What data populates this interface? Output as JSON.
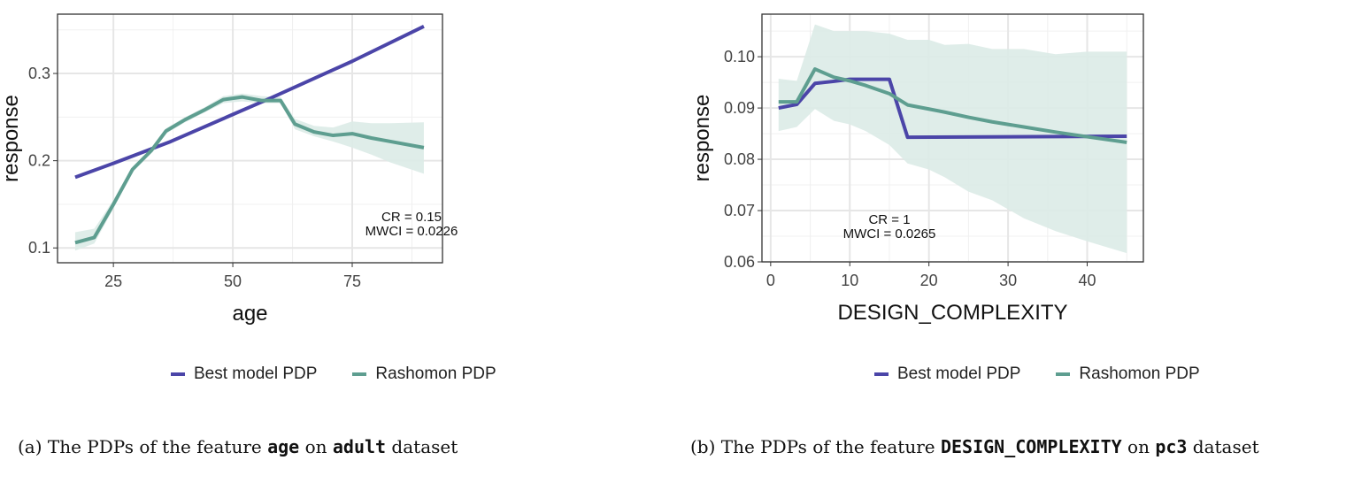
{
  "colors": {
    "best": "#4B45A8",
    "rashomon": "#5E9E90",
    "band": "#DCEBE7",
    "grid": "#E6E6E6"
  },
  "chart_data": [
    {
      "type": "line",
      "xlabel": "age",
      "ylabel": "response",
      "xlim": [
        13.3,
        93.9
      ],
      "ylim": [
        0.083,
        0.368
      ],
      "xticks": [
        25,
        50,
        75
      ],
      "xtick_labels": [
        "25",
        "50",
        "75"
      ],
      "yticks": [
        0.1,
        0.2,
        0.3
      ],
      "ytick_labels": [
        "0.1",
        "0.2",
        "0.3"
      ],
      "grid": true,
      "legend": "bottom",
      "annotation": [
        "CR = 0.15",
        "MWCI = 0.0226"
      ],
      "series": [
        {
          "name": "Best model PDP",
          "x": [
            17,
            25,
            37,
            50,
            58,
            75,
            90
          ],
          "y": [
            0.181,
            0.197,
            0.222,
            0.253,
            0.272,
            0.314,
            0.354
          ]
        },
        {
          "name": "Rashomon PDP",
          "x": [
            17,
            21,
            25,
            29,
            33,
            36,
            40,
            44,
            48,
            52,
            56,
            60,
            63,
            67,
            71,
            75,
            79,
            83,
            90
          ],
          "y": [
            0.106,
            0.112,
            0.15,
            0.19,
            0.212,
            0.234,
            0.247,
            0.258,
            0.27,
            0.273,
            0.269,
            0.269,
            0.242,
            0.233,
            0.229,
            0.231,
            0.226,
            0.222,
            0.215
          ],
          "lower": [
            0.097,
            0.105,
            0.145,
            0.187,
            0.209,
            0.231,
            0.244,
            0.255,
            0.266,
            0.268,
            0.266,
            0.266,
            0.236,
            0.228,
            0.222,
            0.215,
            0.207,
            0.198,
            0.185
          ],
          "upper": [
            0.118,
            0.122,
            0.155,
            0.193,
            0.215,
            0.237,
            0.25,
            0.261,
            0.274,
            0.277,
            0.274,
            0.273,
            0.248,
            0.24,
            0.238,
            0.245,
            0.243,
            0.243,
            0.244
          ]
        }
      ],
      "caption": {
        "prefix": "(a) The PDPs of the feature ",
        "feature": "age",
        "mid": " on ",
        "dataset": "adult",
        "suffix": " dataset"
      }
    },
    {
      "type": "line",
      "xlabel": "DESIGN_COMPLEXITY",
      "ylabel": "response",
      "xlim": [
        -1.1,
        47.1
      ],
      "ylim": [
        0.06,
        0.1083
      ],
      "xticks": [
        0,
        10,
        20,
        30,
        40
      ],
      "xtick_labels": [
        "0",
        "10",
        "20",
        "30",
        "40"
      ],
      "yticks": [
        0.06,
        0.07,
        0.08,
        0.09,
        0.1
      ],
      "ytick_labels": [
        "0.06",
        "0.07",
        "0.08",
        "0.09",
        "0.10"
      ],
      "grid": true,
      "legend": "bottom",
      "annotation": [
        "CR = 1",
        "MWCI = 0.0265"
      ],
      "series": [
        {
          "name": "Best model PDP",
          "x": [
            1,
            3.3,
            5.6,
            8,
            10,
            15,
            17.3,
            45
          ],
          "y": [
            0.09,
            0.0907,
            0.0948,
            0.0952,
            0.0956,
            0.0956,
            0.0843,
            0.0845
          ]
        },
        {
          "name": "Rashomon PDP",
          "x": [
            1,
            3.3,
            5.6,
            8,
            10,
            12,
            15,
            17.3,
            20,
            22,
            25,
            28,
            32,
            36,
            40,
            45
          ],
          "y": [
            0.0912,
            0.0912,
            0.0976,
            0.096,
            0.0953,
            0.0944,
            0.0928,
            0.0906,
            0.0898,
            0.0892,
            0.0882,
            0.0873,
            0.0863,
            0.0853,
            0.0844,
            0.0833
          ],
          "lower": [
            0.0855,
            0.0863,
            0.0898,
            0.0875,
            0.0868,
            0.0855,
            0.0828,
            0.0792,
            0.078,
            0.0765,
            0.0737,
            0.072,
            0.0685,
            0.066,
            0.064,
            0.0617
          ],
          "upper": [
            0.0957,
            0.0953,
            0.1063,
            0.105,
            0.105,
            0.105,
            0.1045,
            0.1033,
            0.1033,
            0.1023,
            0.1025,
            0.1015,
            0.1015,
            0.1005,
            0.101,
            0.101
          ]
        }
      ],
      "caption": {
        "prefix": "(b) The PDPs of the feature ",
        "feature": "DESIGN_COMPLEXITY",
        "mid": " on ",
        "dataset": "pc3",
        "suffix": " dataset"
      }
    }
  ],
  "legend": {
    "best": "Best model PDP",
    "rashomon": "Rashomon PDP"
  }
}
